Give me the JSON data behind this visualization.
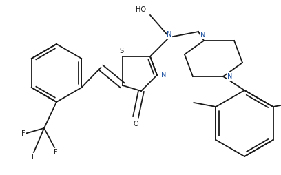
{
  "bg_color": "#ffffff",
  "line_color": "#1a1a1a",
  "n_color": "#1a4fa0",
  "figsize": [
    4.08,
    2.54
  ],
  "dpi": 100,
  "lw": 1.3,
  "fs": 7.0,
  "xlim": [
    0,
    408
  ],
  "ylim": [
    0,
    254
  ]
}
